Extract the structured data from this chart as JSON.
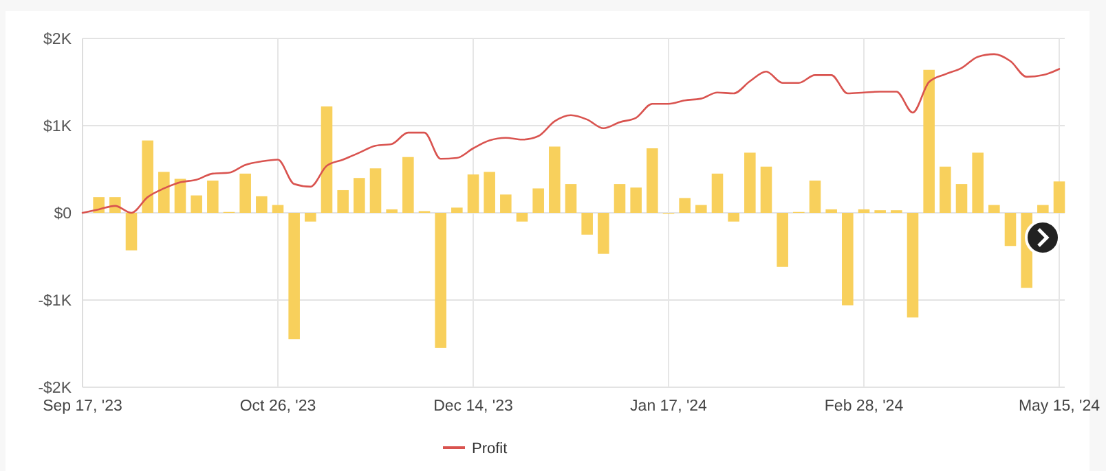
{
  "chart_data": {
    "type": "bar",
    "categories": [
      "Sep 17, '23",
      null,
      null,
      null,
      null,
      null,
      null,
      null,
      null,
      null,
      null,
      null,
      "Oct 26, '23",
      null,
      null,
      null,
      null,
      null,
      null,
      null,
      null,
      null,
      null,
      null,
      "Dec 14, '23",
      null,
      null,
      null,
      null,
      null,
      null,
      null,
      null,
      null,
      null,
      null,
      "Jan 17, '24",
      null,
      null,
      null,
      null,
      null,
      null,
      null,
      null,
      null,
      null,
      null,
      "Feb 28, '24",
      null,
      null,
      null,
      null,
      null,
      null,
      null,
      null,
      null,
      null,
      null,
      "May 15, '24"
    ],
    "series": [
      {
        "color": "#f8d05c",
        "values": [
          0,
          180,
          180,
          -430,
          830,
          470,
          390,
          200,
          370,
          10,
          450,
          190,
          90,
          -1450,
          -100,
          1220,
          260,
          400,
          510,
          40,
          640,
          20,
          -1550,
          60,
          440,
          470,
          210,
          -100,
          280,
          760,
          330,
          -250,
          -470,
          330,
          290,
          740,
          -10,
          170,
          90,
          450,
          -100,
          690,
          530,
          -620,
          10,
          370,
          40,
          -1060,
          40,
          30,
          30,
          -1200,
          1640,
          530,
          330,
          690,
          90,
          -380,
          -860,
          90,
          360
        ]
      },
      {
        "type": "line",
        "name": "Profit",
        "color": "#d9534f",
        "values": [
          0,
          40,
          80,
          0,
          180,
          280,
          350,
          380,
          450,
          460,
          550,
          590,
          610,
          330,
          300,
          540,
          610,
          690,
          770,
          790,
          920,
          920,
          620,
          630,
          740,
          830,
          860,
          840,
          880,
          1050,
          1120,
          1070,
          970,
          1040,
          1090,
          1250,
          1250,
          1290,
          1310,
          1380,
          1370,
          1510,
          1620,
          1490,
          1490,
          1580,
          1580,
          1370,
          1380,
          1390,
          1390,
          1150,
          1500,
          1590,
          1660,
          1790,
          1820,
          1740,
          1560,
          1580,
          1650
        ]
      }
    ],
    "ylim": [
      -2000,
      2000
    ],
    "yticks": [
      {
        "value": -2000,
        "label": "-$2K"
      },
      {
        "value": -1000,
        "label": "-$1K"
      },
      {
        "value": 0,
        "label": "$0"
      },
      {
        "value": 1000,
        "label": "$1K"
      },
      {
        "value": 2000,
        "label": "$2K"
      }
    ],
    "grid": true,
    "legend": "bottom"
  }
}
